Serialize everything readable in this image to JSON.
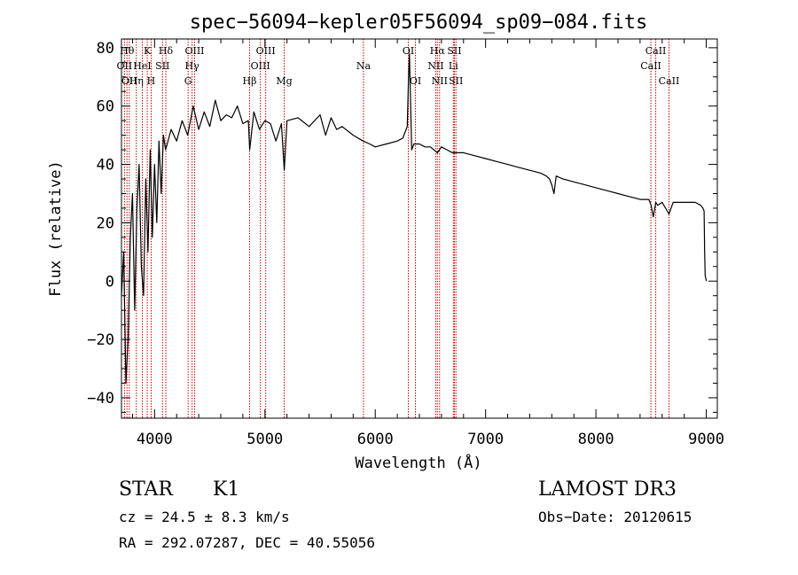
{
  "chart_data": {
    "type": "line",
    "title": "spec−56094−kepler05F56094_sp09−084.fits",
    "xlabel": "Wavelength (Å)",
    "ylabel": "Flux (relative)",
    "xlim": [
      3700,
      9100
    ],
    "ylim": [
      -47,
      83
    ],
    "x_ticks": [
      4000,
      5000,
      6000,
      7000,
      8000,
      9000
    ],
    "y_ticks": [
      -40,
      -20,
      0,
      20,
      40,
      60,
      80
    ],
    "y_tick_labels": [
      "−40",
      "−20",
      "0",
      "20",
      "40",
      "60",
      "80"
    ],
    "line_color": "#000000",
    "marker_line_color": "#cc0000",
    "series": [
      {
        "name": "flux",
        "x": [
          3700,
          3720,
          3740,
          3760,
          3780,
          3800,
          3820,
          3840,
          3860,
          3880,
          3900,
          3920,
          3940,
          3960,
          3980,
          4000,
          4020,
          4040,
          4060,
          4080,
          4100,
          4150,
          4200,
          4250,
          4300,
          4350,
          4400,
          4450,
          4500,
          4550,
          4600,
          4650,
          4700,
          4750,
          4800,
          4850,
          4862,
          4900,
          4950,
          5000,
          5050,
          5100,
          5150,
          5175,
          5200,
          5300,
          5400,
          5500,
          5550,
          5600,
          5650,
          5700,
          5800,
          5890,
          5950,
          6000,
          6100,
          6200,
          6250,
          6290,
          6300,
          6310,
          6330,
          6350,
          6400,
          6450,
          6500,
          6563,
          6600,
          6650,
          6700,
          6800,
          6900,
          7000,
          7100,
          7200,
          7300,
          7400,
          7500,
          7550,
          7580,
          7600,
          7620,
          7640,
          7700,
          7800,
          7900,
          8000,
          8100,
          8200,
          8300,
          8400,
          8480,
          8500,
          8520,
          8542,
          8560,
          8600,
          8662,
          8700,
          8800,
          8900,
          8950,
          8970,
          8980,
          8985,
          8990,
          9000
        ],
        "y": [
          -5,
          10,
          -35,
          -20,
          15,
          30,
          -10,
          25,
          40,
          5,
          -5,
          35,
          10,
          45,
          15,
          40,
          20,
          48,
          30,
          50,
          45,
          52,
          48,
          55,
          50,
          60,
          52,
          58,
          53,
          62,
          55,
          57,
          56,
          60,
          54,
          55,
          45,
          58,
          52,
          55,
          54,
          48,
          54,
          38,
          55,
          56,
          53,
          57,
          50,
          56,
          52,
          53,
          50,
          48,
          47,
          46,
          47,
          48,
          49,
          53,
          68,
          78,
          45,
          47,
          47,
          46,
          46,
          44,
          46,
          45,
          44,
          44,
          43,
          42,
          41,
          40,
          39,
          38,
          37,
          36,
          35,
          33,
          30,
          36,
          35,
          34,
          33,
          32,
          31,
          30,
          29,
          28,
          28,
          26,
          22,
          27,
          26,
          27,
          23,
          27,
          27,
          27,
          26,
          25,
          24,
          10,
          2,
          0
        ]
      }
    ],
    "lines": [
      {
        "wl": 3727,
        "label": "OII",
        "row": 2
      },
      {
        "wl": 3750,
        "label": "Hθ",
        "row": 1
      },
      {
        "wl": 3771,
        "label": "OII",
        "row": 3
      },
      {
        "wl": 3835,
        "label": "Hη",
        "row": 3
      },
      {
        "wl": 3889,
        "label": "HeI",
        "row": 2
      },
      {
        "wl": 3934,
        "label": "K",
        "row": 1
      },
      {
        "wl": 3969,
        "label": "H",
        "row": 3
      },
      {
        "wl": 4072,
        "label": "SII",
        "row": 2
      },
      {
        "wl": 4102,
        "label": "Hδ",
        "row": 1
      },
      {
        "wl": 4304,
        "label": "G",
        "row": 3
      },
      {
        "wl": 4340,
        "label": "Hγ",
        "row": 2
      },
      {
        "wl": 4363,
        "label": "OIII",
        "row": 1
      },
      {
        "wl": 4861,
        "label": "Hβ",
        "row": 3
      },
      {
        "wl": 4959,
        "label": "OIII",
        "row": 2
      },
      {
        "wl": 5007,
        "label": "OIII",
        "row": 1
      },
      {
        "wl": 5175,
        "label": "Mg",
        "row": 3
      },
      {
        "wl": 5893,
        "label": "Na",
        "row": 2
      },
      {
        "wl": 6300,
        "label": "OI",
        "row": 1
      },
      {
        "wl": 6364,
        "label": "OI",
        "row": 3
      },
      {
        "wl": 6548,
        "label": "NII",
        "row": 2
      },
      {
        "wl": 6563,
        "label": "Hα",
        "row": 1
      },
      {
        "wl": 6583,
        "label": "NII",
        "row": 3
      },
      {
        "wl": 6708,
        "label": "Li",
        "row": 2
      },
      {
        "wl": 6717,
        "label": "SII",
        "row": 1
      },
      {
        "wl": 6731,
        "label": "SII",
        "row": 3
      },
      {
        "wl": 8498,
        "label": "CaII",
        "row": 2
      },
      {
        "wl": 8542,
        "label": "CaII",
        "row": 1
      },
      {
        "wl": 8662,
        "label": "CaII",
        "row": 3
      }
    ]
  },
  "info": {
    "object_class": "STAR",
    "subclass": "K1",
    "redshift_text": "cz = 24.5 ± 8.3 km/s",
    "coords_text": "RA = 292.07287, DEC =  40.55056",
    "survey": "LAMOST DR3",
    "obs_date_text": "Obs−Date: 20120615"
  }
}
